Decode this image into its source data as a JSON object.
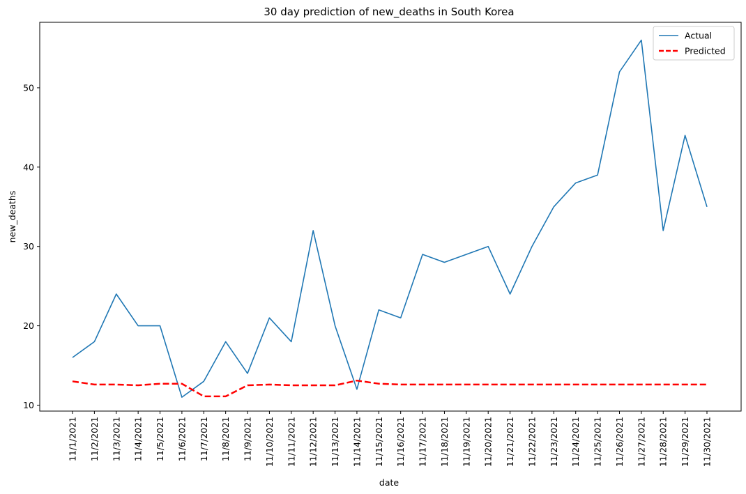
{
  "chart_data": {
    "type": "line",
    "title": "30 day prediction of new_deaths in South Korea",
    "xlabel": "date",
    "ylabel": "new_deaths",
    "categories": [
      "11/1/2021",
      "11/2/2021",
      "11/3/2021",
      "11/4/2021",
      "11/5/2021",
      "11/6/2021",
      "11/7/2021",
      "11/8/2021",
      "11/9/2021",
      "11/10/2021",
      "11/11/2021",
      "11/12/2021",
      "11/13/2021",
      "11/14/2021",
      "11/15/2021",
      "11/16/2021",
      "11/17/2021",
      "11/18/2021",
      "11/19/2021",
      "11/20/2021",
      "11/21/2021",
      "11/22/2021",
      "11/23/2021",
      "11/24/2021",
      "11/25/2021",
      "11/26/2021",
      "11/27/2021",
      "11/28/2021",
      "11/29/2021",
      "11/30/2021"
    ],
    "series": [
      {
        "name": "Actual",
        "color": "#1f77b4",
        "style": "solid",
        "values": [
          16,
          18,
          24,
          20,
          20,
          11,
          13,
          18,
          14,
          21,
          18,
          32,
          20,
          12,
          22,
          21,
          29,
          28,
          29,
          30,
          24,
          30,
          35,
          38,
          39,
          52,
          56,
          32,
          44,
          35
        ]
      },
      {
        "name": "Predicted",
        "color": "#ff0000",
        "style": "dashed",
        "values": [
          13.0,
          12.6,
          12.6,
          12.5,
          12.7,
          12.7,
          11.1,
          11.1,
          12.5,
          12.6,
          12.5,
          12.5,
          12.5,
          13.1,
          12.7,
          12.6,
          12.6,
          12.6,
          12.6,
          12.6,
          12.6,
          12.6,
          12.6,
          12.6,
          12.6,
          12.6,
          12.6,
          12.6,
          12.6,
          12.6
        ]
      }
    ],
    "yticks": [
      10,
      20,
      30,
      40,
      50
    ],
    "ylim": [
      9.25,
      58.25
    ],
    "grid": false,
    "legend_position": "top-right"
  }
}
